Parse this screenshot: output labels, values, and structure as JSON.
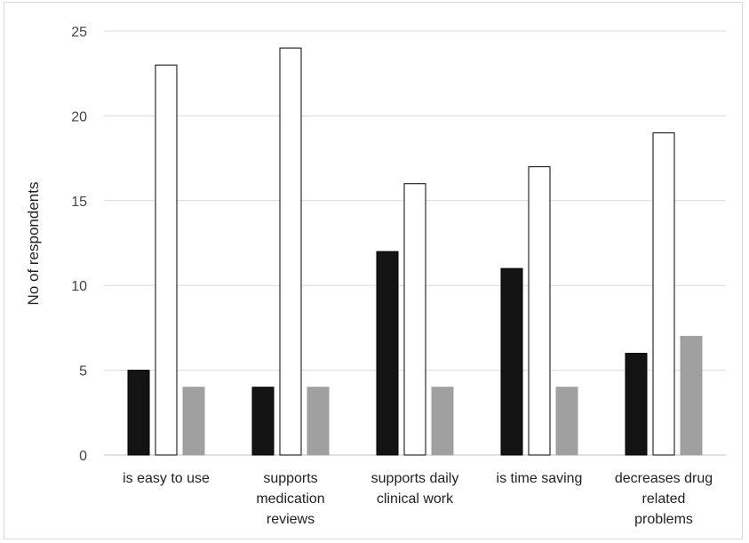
{
  "chart_data": {
    "type": "bar",
    "title": "",
    "xlabel": "",
    "ylabel": "No of respondents",
    "ylim": [
      0,
      25
    ],
    "yticks": [
      0,
      5,
      10,
      15,
      20,
      25
    ],
    "grid": true,
    "legend": "none",
    "categories": [
      "is easy to use",
      "supports medication reviews",
      "supports daily clinical work",
      "is time saving",
      "decreases drug related problems"
    ],
    "category_lines": [
      [
        "is easy to use"
      ],
      [
        "supports",
        "medication",
        "reviews"
      ],
      [
        "supports daily",
        "clinical work"
      ],
      [
        "is time saving"
      ],
      [
        "decreases drug",
        "related",
        "problems"
      ]
    ],
    "series": [
      {
        "values": [
          5,
          4,
          12,
          11,
          6
        ],
        "fill": "#141414",
        "stroke": "#000000"
      },
      {
        "values": [
          23,
          24,
          16,
          17,
          19
        ],
        "fill": "#ffffff",
        "stroke": "#000000"
      },
      {
        "values": [
          4,
          4,
          4,
          4,
          7
        ],
        "fill": "#a0a0a0",
        "stroke": "#a0a0a0"
      }
    ]
  },
  "colors": {
    "gridline": "#d9d9d9",
    "axis": "#bfbfbf"
  }
}
